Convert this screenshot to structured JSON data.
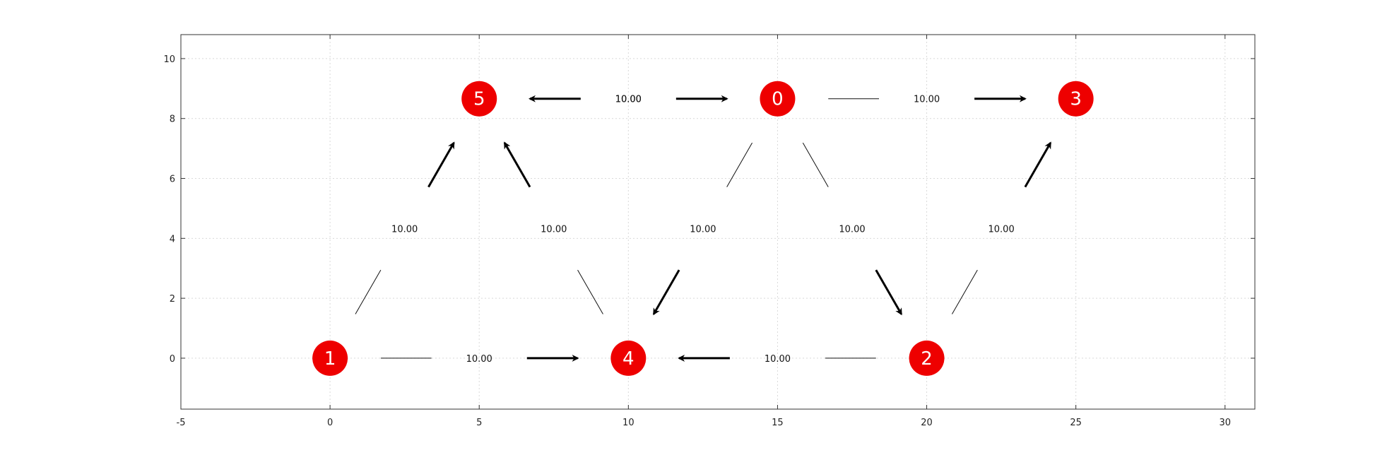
{
  "chart_data": {
    "type": "network-graph",
    "xlim": [
      -5,
      31
    ],
    "ylim": [
      -1.7,
      10.8
    ],
    "xticks": [
      -5,
      0,
      5,
      10,
      15,
      20,
      25,
      30
    ],
    "yticks": [
      0,
      2,
      4,
      6,
      8,
      10
    ],
    "grid": true,
    "colors": {
      "node": "#ee0000",
      "node_text": "#ffffff",
      "edge": "#000000",
      "grid": "#d9d9d9"
    },
    "nodes": [
      {
        "id": "0",
        "x": 15,
        "y": 8.66
      },
      {
        "id": "1",
        "x": 0,
        "y": 0
      },
      {
        "id": "2",
        "x": 20,
        "y": 0
      },
      {
        "id": "3",
        "x": 25,
        "y": 8.66
      },
      {
        "id": "4",
        "x": 10,
        "y": 0
      },
      {
        "id": "5",
        "x": 5,
        "y": 8.66
      }
    ],
    "edges": [
      {
        "from": "0",
        "to": "5",
        "label": "10.00"
      },
      {
        "from": "5",
        "to": "0",
        "label": "10.00"
      },
      {
        "from": "0",
        "to": "3",
        "label": "10.00"
      },
      {
        "from": "1",
        "to": "5",
        "label": "10.00"
      },
      {
        "from": "4",
        "to": "5",
        "label": "10.00"
      },
      {
        "from": "0",
        "to": "4",
        "label": "10.00"
      },
      {
        "from": "0",
        "to": "2",
        "label": "10.00"
      },
      {
        "from": "2",
        "to": "3",
        "label": "10.00"
      },
      {
        "from": "1",
        "to": "4",
        "label": "10.00"
      },
      {
        "from": "2",
        "to": "4",
        "label": "10.00"
      }
    ]
  }
}
